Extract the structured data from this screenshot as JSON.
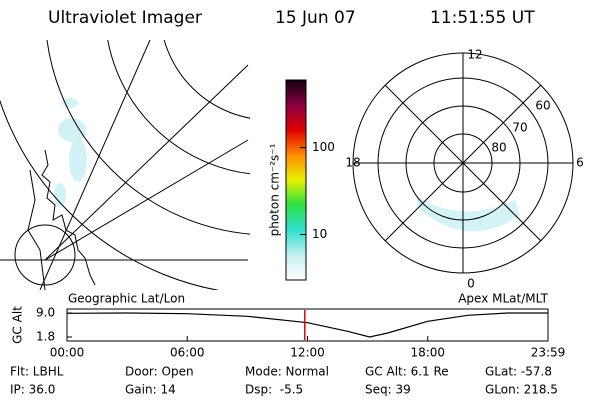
{
  "header": {
    "title": "Ultraviolet Imager",
    "date": "15 Jun 07",
    "time": "11:51:55 UT"
  },
  "map_label": "Geographic Lat/Lon",
  "polar_label": "Apex MLat/MLT",
  "polar_plot": {
    "labels": [
      "12",
      "60",
      "70",
      "80",
      "18",
      "6",
      "0"
    ]
  },
  "colorbar": {
    "label": "photon cm⁻²s⁻¹",
    "scale": "log",
    "lim": [
      3,
      600
    ],
    "ticks": [
      10,
      100
    ]
  },
  "chart_data": {
    "type": "line",
    "ylabel": "GC Alt",
    "x": [
      0,
      3,
      6,
      9,
      12,
      14,
      15.1,
      16,
      18,
      20,
      22,
      24
    ],
    "xlim": [
      0,
      24
    ],
    "xticks": [
      {
        "value": 0,
        "label": "00:00"
      },
      {
        "value": 6,
        "label": "06:00"
      },
      {
        "value": 12,
        "label": "12:00"
      },
      {
        "value": 18,
        "label": "18:00"
      },
      {
        "value": 24,
        "label": "23:59"
      }
    ],
    "ylim": [
      1.8,
      9.0
    ],
    "yticks": [
      1.8,
      {
        "value": 9.0,
        "label": "9.0"
      }
    ],
    "series": [
      {
        "color": "#000000",
        "values": [
          8.9,
          9.0,
          8.8,
          8.0,
          6.1,
          3.5,
          1.8,
          3.0,
          6.5,
          8.3,
          9.0,
          9.0
        ]
      }
    ],
    "current_time": 11.865,
    "current_time_color": "#e00000"
  },
  "info": [
    [
      "Flt: LBHL",
      "Door: Open",
      "Mode: Normal",
      "GC Alt: 6.1 Re",
      "GLat: -57.8"
    ],
    [
      "IP: 36.0",
      "Gain: 14",
      "Dsp:  -5.5",
      "Seq: 39",
      "GLon: 218.5"
    ]
  ]
}
